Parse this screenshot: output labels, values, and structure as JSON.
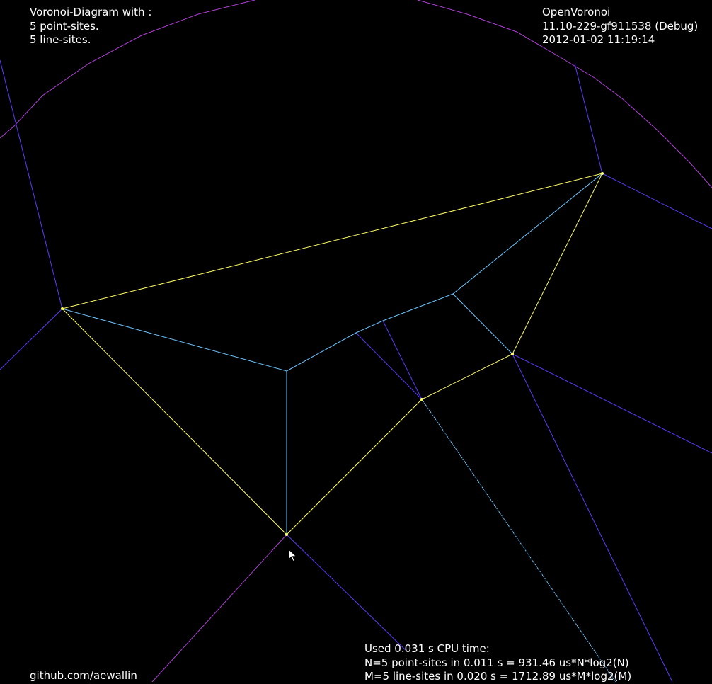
{
  "overlay": {
    "diagram_header": "Voronoi-Diagram with :",
    "point_sites_label": "5 point-sites.",
    "line_sites_label": "5 line-sites.",
    "app_name": "OpenVoronoi",
    "version": "11.10-229-gf911538 (Debug)",
    "timestamp": "2012-01-02 11:19:14",
    "cpu_time": "Used 0.031 s CPU time:",
    "point_timing": "N=5 point-sites in 0.011 s = 931.46 us*N*log2(N)",
    "line_timing": "M=5 line-sites in 0.020 s = 1712.89 us*M*log2(M)",
    "credit": "github.com/aewallin"
  },
  "colors": {
    "background": "#000000",
    "site": "#ffff66",
    "edge": "#6ec6ff",
    "separator": "#5b3cff",
    "offset": "#b040d8",
    "text": "#ffffff"
  },
  "icons": {
    "pointer": "mouse-pointer-icon"
  }
}
